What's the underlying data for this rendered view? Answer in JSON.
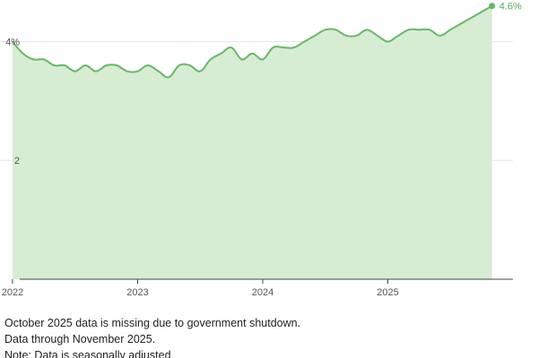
{
  "chart_data": {
    "type": "area",
    "y_ticks": [
      {
        "value": 4,
        "label": "4%"
      },
      {
        "value": 2,
        "label": "2"
      }
    ],
    "x_ticks": [
      {
        "value": 2022.0,
        "label": "2022"
      },
      {
        "value": 2023.0,
        "label": "2023"
      },
      {
        "value": 2024.0,
        "label": "2024"
      },
      {
        "value": 2025.0,
        "label": "2025"
      }
    ],
    "ylim": [
      0,
      4.7
    ],
    "xlim": [
      2021.9,
      2026.0
    ],
    "grid": true,
    "legend": "none",
    "end_label": "4.6%",
    "colors": {
      "line": "#6ab66a",
      "fill": "#d6ecd3",
      "grid": "#e6e6e6",
      "axis": "#444444",
      "end_label": "#5aa95a"
    },
    "series": [
      {
        "values": [
          {
            "x": 2022.0,
            "y": 4.0
          },
          {
            "x": 2022.083,
            "y": 3.8
          },
          {
            "x": 2022.167,
            "y": 3.7
          },
          {
            "x": 2022.25,
            "y": 3.7
          },
          {
            "x": 2022.333,
            "y": 3.6
          },
          {
            "x": 2022.417,
            "y": 3.6
          },
          {
            "x": 2022.5,
            "y": 3.5
          },
          {
            "x": 2022.583,
            "y": 3.6
          },
          {
            "x": 2022.667,
            "y": 3.5
          },
          {
            "x": 2022.75,
            "y": 3.6
          },
          {
            "x": 2022.833,
            "y": 3.6
          },
          {
            "x": 2022.917,
            "y": 3.5
          },
          {
            "x": 2023.0,
            "y": 3.5
          },
          {
            "x": 2023.083,
            "y": 3.6
          },
          {
            "x": 2023.167,
            "y": 3.5
          },
          {
            "x": 2023.25,
            "y": 3.4
          },
          {
            "x": 2023.333,
            "y": 3.6
          },
          {
            "x": 2023.417,
            "y": 3.6
          },
          {
            "x": 2023.5,
            "y": 3.5
          },
          {
            "x": 2023.583,
            "y": 3.7
          },
          {
            "x": 2023.667,
            "y": 3.8
          },
          {
            "x": 2023.75,
            "y": 3.9
          },
          {
            "x": 2023.833,
            "y": 3.7
          },
          {
            "x": 2023.917,
            "y": 3.8
          },
          {
            "x": 2024.0,
            "y": 3.7
          },
          {
            "x": 2024.083,
            "y": 3.9
          },
          {
            "x": 2024.167,
            "y": 3.9
          },
          {
            "x": 2024.25,
            "y": 3.9
          },
          {
            "x": 2024.333,
            "y": 4.0
          },
          {
            "x": 2024.417,
            "y": 4.1
          },
          {
            "x": 2024.5,
            "y": 4.2
          },
          {
            "x": 2024.583,
            "y": 4.2
          },
          {
            "x": 2024.667,
            "y": 4.1
          },
          {
            "x": 2024.75,
            "y": 4.1
          },
          {
            "x": 2024.833,
            "y": 4.2
          },
          {
            "x": 2024.917,
            "y": 4.1
          },
          {
            "x": 2025.0,
            "y": 4.0
          },
          {
            "x": 2025.083,
            "y": 4.1
          },
          {
            "x": 2025.167,
            "y": 4.2
          },
          {
            "x": 2025.25,
            "y": 4.2
          },
          {
            "x": 2025.333,
            "y": 4.2
          },
          {
            "x": 2025.417,
            "y": 4.1
          },
          {
            "x": 2025.5,
            "y": 4.2
          },
          {
            "x": 2025.583,
            "y": 4.3
          },
          {
            "x": 2025.667,
            "y": 4.4
          },
          {
            "x": 2025.833,
            "y": 4.6
          }
        ]
      }
    ]
  },
  "notes": [
    "October 2025 data is missing due to government shutdown.",
    "Data through November 2025.",
    "Note: Data is seasonally adjusted."
  ]
}
